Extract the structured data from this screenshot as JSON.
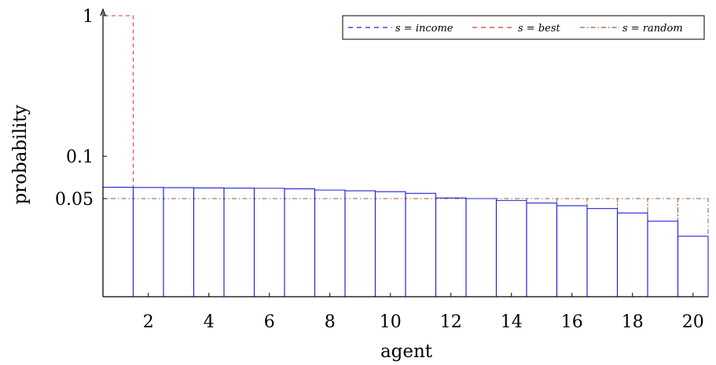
{
  "chart_data": {
    "type": "bar",
    "xlabel": "agent",
    "ylabel": "probability",
    "y_scale": "log",
    "xlim": [
      0.5,
      20.5
    ],
    "x_ticks": [
      2,
      4,
      6,
      8,
      10,
      12,
      14,
      16,
      18,
      20
    ],
    "y_ticks": [
      {
        "value": 0.05,
        "label": "0.05"
      },
      {
        "value": 0.1,
        "label": "0.1"
      },
      {
        "value": 1,
        "label": "1"
      }
    ],
    "categories": [
      1,
      2,
      3,
      4,
      5,
      6,
      7,
      8,
      9,
      10,
      11,
      12,
      13,
      14,
      15,
      16,
      17,
      18,
      19,
      20
    ],
    "legend_position": "top-right",
    "series": [
      {
        "name": "s = income",
        "color": "#2222dd",
        "style": "dashed",
        "values": [
          0.0602,
          0.06,
          0.0598,
          0.0595,
          0.0593,
          0.0592,
          0.0587,
          0.0575,
          0.0568,
          0.056,
          0.0545,
          0.0505,
          0.05,
          0.0485,
          0.0465,
          0.0445,
          0.0425,
          0.0395,
          0.0345,
          0.027
        ]
      },
      {
        "name": "s = best",
        "color": "#e8333a",
        "style": "dashed",
        "values": [
          1,
          0,
          0,
          0,
          0,
          0,
          0,
          0,
          0,
          0,
          0,
          0,
          0,
          0,
          0,
          0,
          0,
          0,
          0,
          0
        ]
      },
      {
        "name": "s = random",
        "color": "#9a5a3a",
        "style": "dashdot",
        "values": [
          0.05,
          0.05,
          0.05,
          0.05,
          0.05,
          0.05,
          0.05,
          0.05,
          0.05,
          0.05,
          0.05,
          0.05,
          0.05,
          0.05,
          0.05,
          0.05,
          0.05,
          0.05,
          0.05,
          0.05
        ]
      }
    ]
  }
}
